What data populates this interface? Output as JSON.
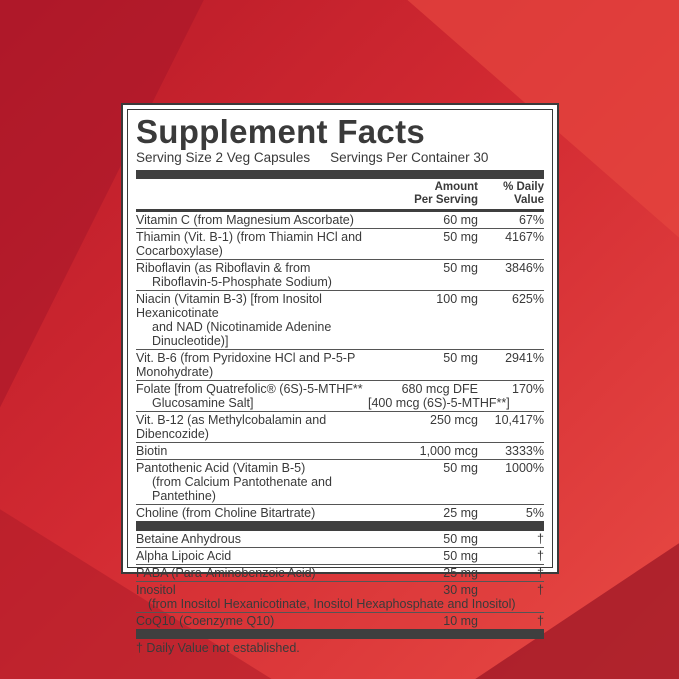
{
  "title": "Supplement Facts",
  "serving_size": "Serving Size 2 Veg Capsules",
  "servings_per_container": "Servings Per Container 30",
  "header": {
    "amount_line1": "Amount",
    "amount_line2": "Per Serving",
    "dv_line1": "% Daily",
    "dv_line2": "Value"
  },
  "rows": [
    {
      "name": "Vitamin C (from Magnesium Ascorbate)",
      "sub": "",
      "amount": "60 mg",
      "dv": "67%"
    },
    {
      "name": "Thiamin (Vit. B-1) (from Thiamin HCl and Cocarboxylase)",
      "sub": "",
      "amount": "50 mg",
      "dv": "4167%"
    },
    {
      "name": "Riboflavin (as Riboflavin & from",
      "sub": "Riboflavin-5-Phosphate Sodium)",
      "amount": "50 mg",
      "dv": "3846%"
    },
    {
      "name": "Niacin (Vitamin B-3) [from Inositol Hexanicotinate",
      "sub": "and NAD (Nicotinamide Adenine Dinucleotide)]",
      "amount": "100 mg",
      "dv": "625%"
    },
    {
      "name": "Vit. B-6 (from Pyridoxine HCl and P-5-P Monohydrate)",
      "sub": "",
      "amount": "50 mg",
      "dv": "2941%"
    },
    {
      "name": "Folate [from Quatrefolic® (6S)-5-MTHF**",
      "sub": "Glucosamine Salt]",
      "amount": "680 mcg DFE",
      "amount2": "[400 mcg (6S)-5-MTHF**]",
      "dv": "170%"
    },
    {
      "name": "Vit. B-12 (as Methylcobalamin and Dibencozide)",
      "sub": "",
      "amount": "250 mcg",
      "dv": "10,417%"
    },
    {
      "name": "Biotin",
      "sub": "",
      "amount": "1,000 mcg",
      "dv": "3333%"
    },
    {
      "name": "Pantothenic Acid (Vitamin B-5)",
      "sub": "(from Calcium Pantothenate and Pantethine)",
      "amount": "50 mg",
      "dv": "1000%"
    },
    {
      "name": "Choline (from Choline Bitartrate)",
      "sub": "",
      "amount": "25 mg",
      "dv": "5%"
    }
  ],
  "rows2": [
    {
      "name": "Betaine Anhydrous",
      "sub": "",
      "amount": "50 mg",
      "dv": "†"
    },
    {
      "name": "Alpha Lipoic Acid",
      "sub": "",
      "amount": "50 mg",
      "dv": "†"
    },
    {
      "name": "PABA (Para-Aminobenzoic Acid)",
      "sub": "",
      "amount": "25 mg",
      "dv": "†"
    },
    {
      "name": "Inositol",
      "sub": "(from Inositol Hexanicotinate, Inositol Hexaphosphate and Inositol)",
      "amount": "30 mg",
      "dv": "†"
    },
    {
      "name": "CoQ10 (Coenzyme Q10)",
      "sub": "",
      "amount": "10 mg",
      "dv": "†"
    }
  ],
  "footnote": "† Daily Value not established.",
  "colors": {
    "background": "#c8202c",
    "ink": "#3a3a3a"
  }
}
